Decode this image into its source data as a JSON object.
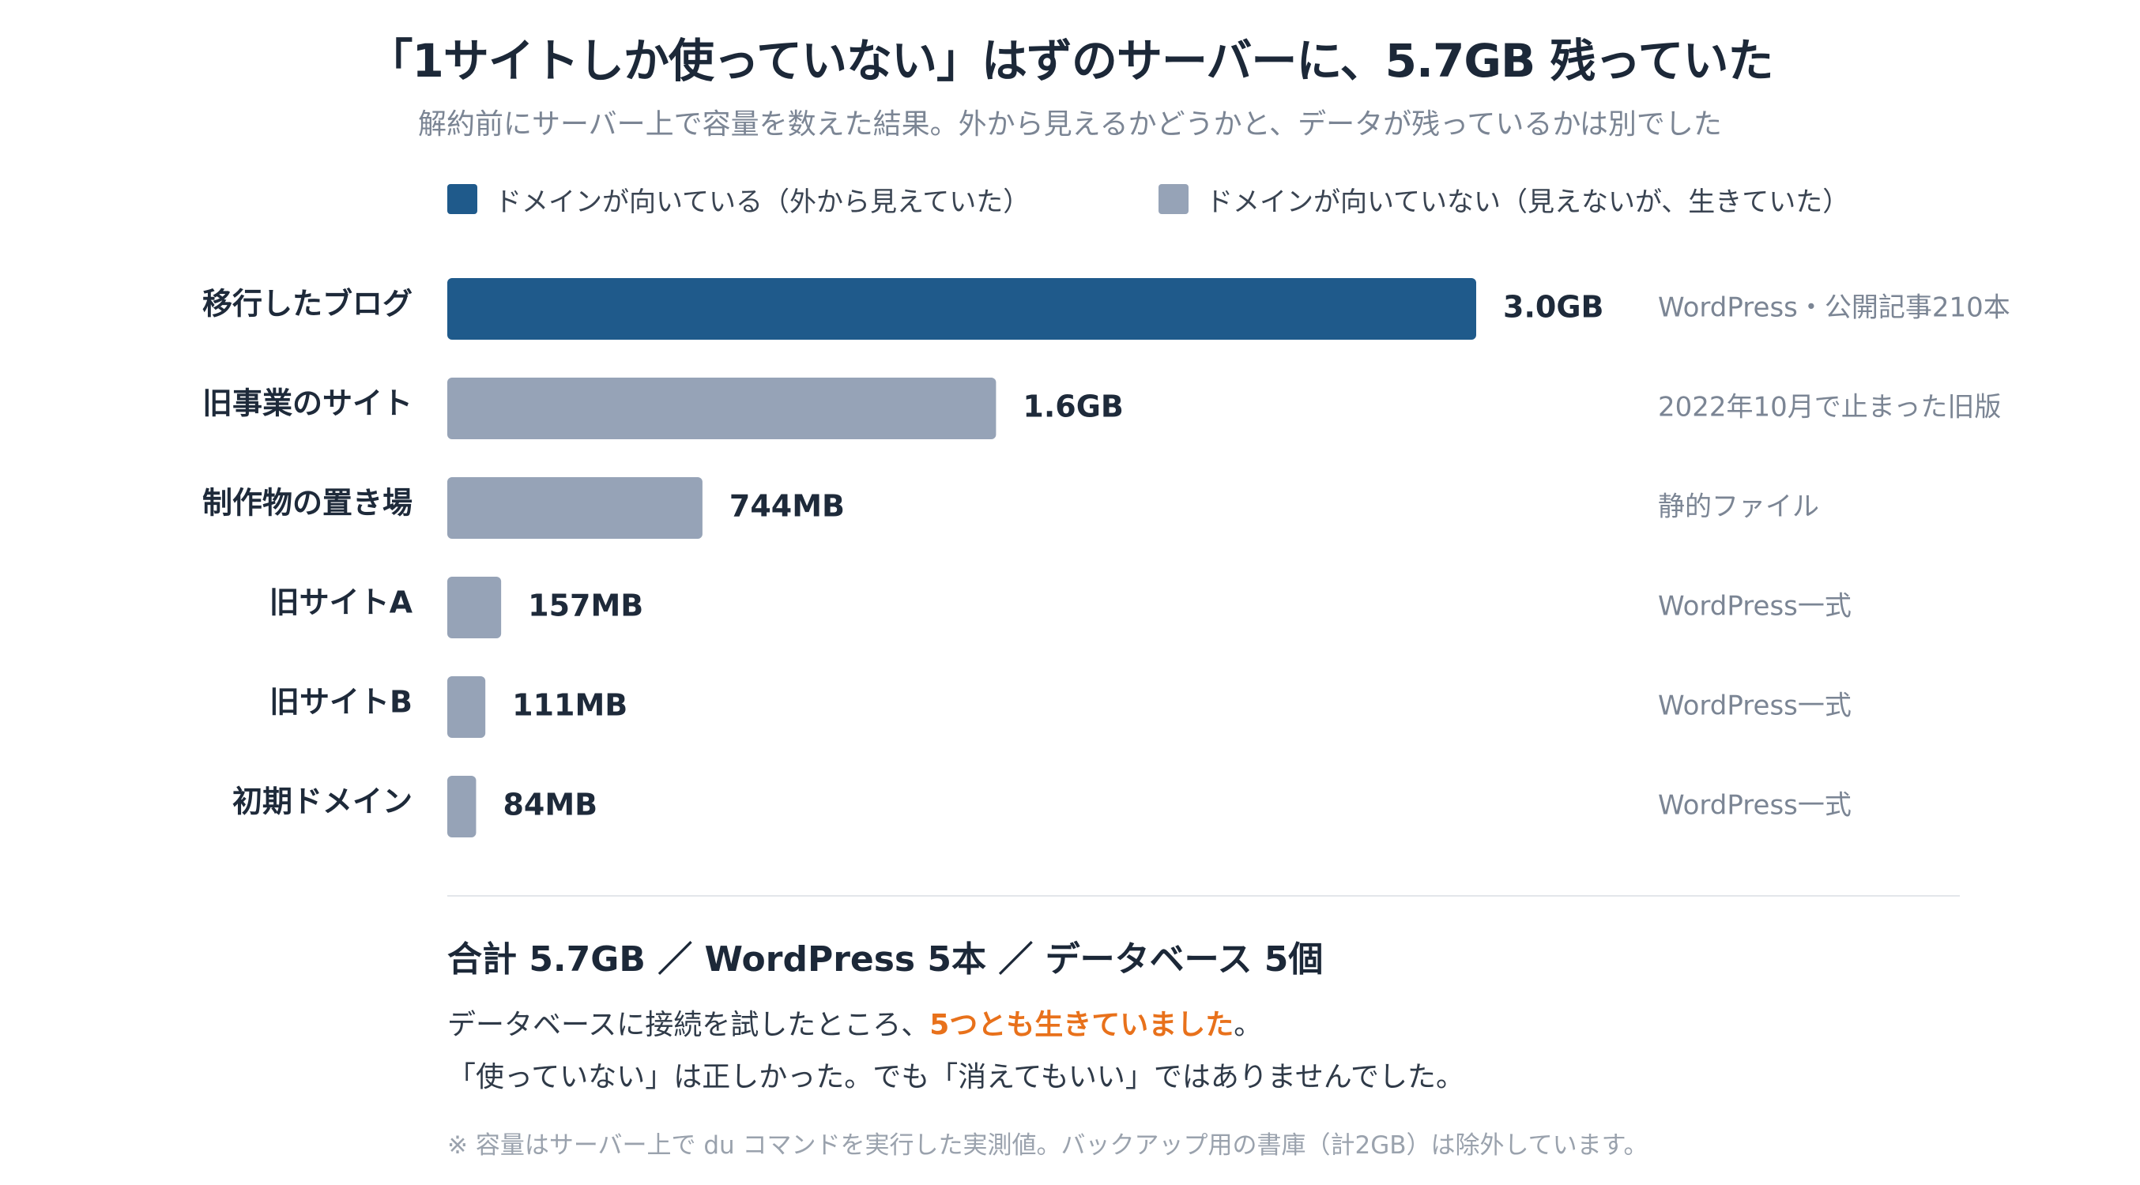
{
  "title": "「1サイトしか使っていない」はずのサーバーに、5.7GB 残っていた",
  "subtitle": "解約前にサーバー上で容量を数えた結果。外から見えるかどうかと、データが残っているかは別でした",
  "legend": [
    {
      "label": "ドメインが向いている（外から見えていた）",
      "color": "#1f5a8b"
    },
    {
      "label": "ドメインが向いていない（見えないが、生きていた）",
      "color": "#96a3b7"
    }
  ],
  "chart_data": {
    "type": "bar",
    "orientation": "horizontal",
    "unit": "MB",
    "xlim": [
      0,
      3000
    ],
    "grid": false,
    "categories": [
      "移行したブログ",
      "旧事業のサイト",
      "制作物の置き場",
      "旧サイトA",
      "旧サイトB",
      "初期ドメイン"
    ],
    "values": [
      3000,
      1600,
      744,
      157,
      111,
      84
    ],
    "value_labels": [
      "3.0GB",
      "1.6GB",
      "744MB",
      "157MB",
      "111MB",
      "84MB"
    ],
    "groups": [
      0,
      1,
      1,
      1,
      1,
      1
    ],
    "notes": [
      "WordPress・公開記事210本",
      "2022年10月で止まった旧版",
      "静的ファイル",
      "WordPress一式",
      "WordPress一式",
      "WordPress一式"
    ]
  },
  "summary": {
    "title": "合計 5.7GB ／ WordPress 5本 ／ データベース 5個",
    "line1_pre": "データベースに接続を試したところ、",
    "line1_highlight": "5つとも生きていました",
    "line1_post": "。",
    "line2": "「使っていない」は正しかった。でも「消えてもいい」ではありませんでした。",
    "highlight_color": "#e8711b"
  },
  "footnote": "※ 容量はサーバー上で du コマンドを実行した実測値。バックアップ用の書庫（計2GB）は除外しています。"
}
